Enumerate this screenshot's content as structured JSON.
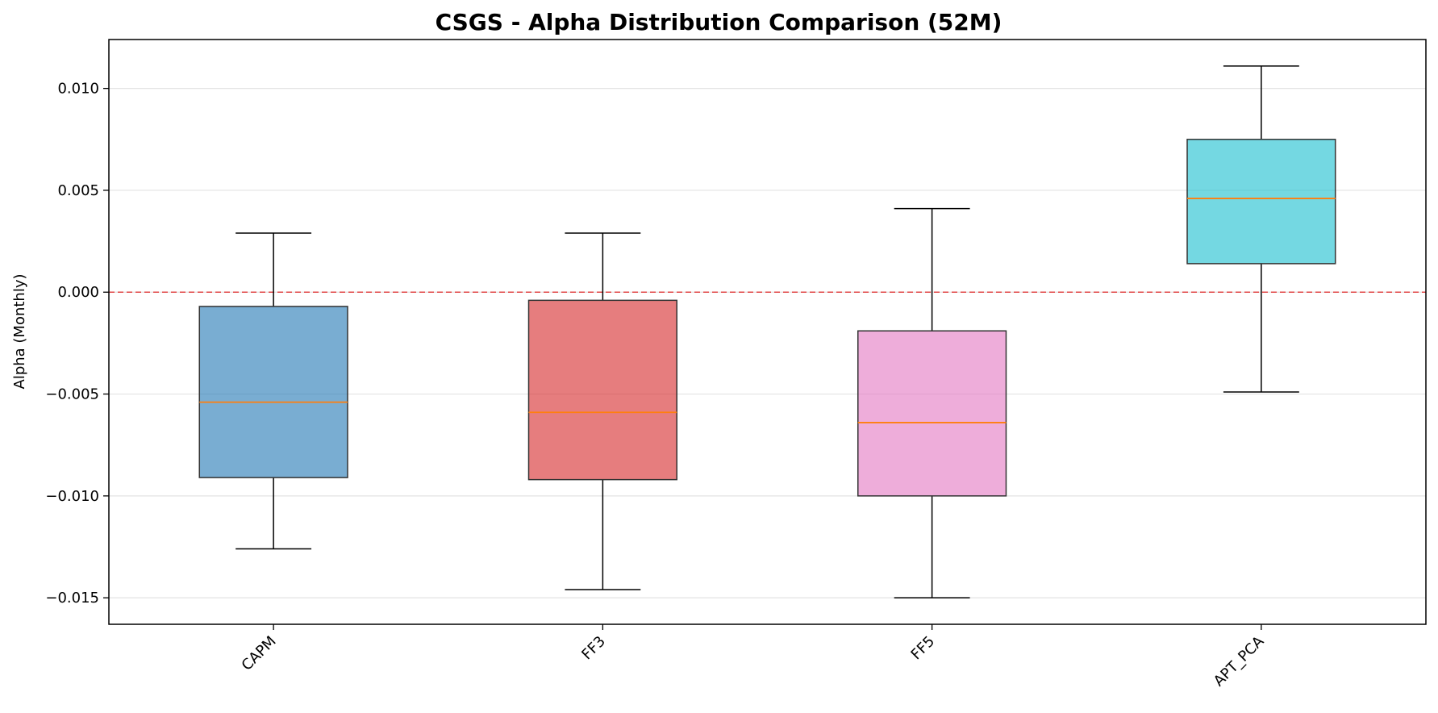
{
  "chart_data": {
    "type": "box",
    "title": "CSGS - Alpha Distribution Comparison (52M)",
    "xlabel": "",
    "ylabel": "Alpha (Monthly)",
    "categories": [
      "CAPM",
      "FF3",
      "FF5",
      "APT_PCA"
    ],
    "boxes": [
      {
        "category": "CAPM",
        "whisker_low": -0.0126,
        "q1": -0.0091,
        "median": -0.0054,
        "q3": -0.0007,
        "whisker_high": 0.0029,
        "color": "#1f77b4"
      },
      {
        "category": "FF3",
        "whisker_low": -0.0146,
        "q1": -0.0092,
        "median": -0.0059,
        "q3": -0.0004,
        "whisker_high": 0.0029,
        "color": "#d62728"
      },
      {
        "category": "FF5",
        "whisker_low": -0.015,
        "q1": -0.01,
        "median": -0.0064,
        "q3": -0.0019,
        "whisker_high": 0.0041,
        "color": "#e377c2"
      },
      {
        "category": "APT_PCA",
        "whisker_low": -0.0049,
        "q1": 0.0014,
        "median": 0.0046,
        "q3": 0.0075,
        "whisker_high": 0.0111,
        "color": "#17becf"
      }
    ],
    "yticks": [
      -0.015,
      -0.01,
      -0.005,
      0.0,
      0.005,
      0.01
    ],
    "ytick_labels": [
      "−0.015",
      "−0.010",
      "−0.005",
      "0.000",
      "0.005",
      "0.010"
    ],
    "ylim": [
      -0.0163,
      0.0124
    ],
    "reference_line": {
      "y": 0.0,
      "color": "#e24a4a",
      "style": "dashed"
    },
    "median_color": "#ff7f0e",
    "grid": "y",
    "legend": "none"
  }
}
